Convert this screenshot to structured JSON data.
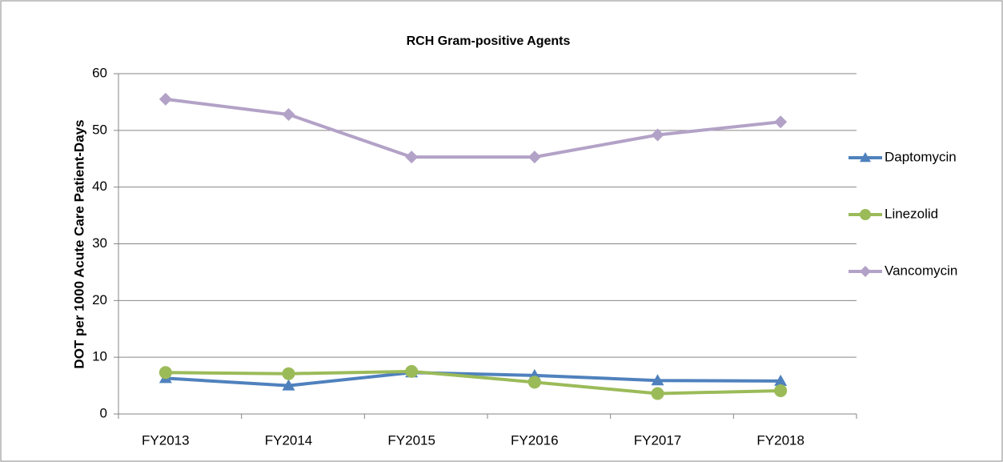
{
  "chart_data": {
    "type": "line",
    "title": "RCH Gram-positive Agents",
    "y_label": "DOT per 1000 Acute Care Patient-Days",
    "categories": [
      "FY2013",
      "FY2014",
      "FY2015",
      "FY2016",
      "FY2017",
      "FY2018"
    ],
    "series": [
      {
        "name": "Daptomycin",
        "color": "#4f81bd",
        "marker": "triangle",
        "values": [
          6.3,
          5.0,
          7.3,
          6.8,
          5.9,
          5.8
        ]
      },
      {
        "name": "Linezolid",
        "color": "#9bbb59",
        "marker": "circle",
        "values": [
          7.3,
          7.1,
          7.5,
          5.6,
          3.6,
          4.1
        ]
      },
      {
        "name": "Vancomycin",
        "color": "#b3a2c7",
        "marker": "diamond",
        "values": [
          55.5,
          52.8,
          45.3,
          45.3,
          49.2,
          51.5
        ]
      }
    ],
    "ylim": [
      0,
      60
    ],
    "yticks": [
      0,
      10,
      20,
      30,
      40,
      50,
      60
    ],
    "grid": true,
    "legend": "right"
  }
}
